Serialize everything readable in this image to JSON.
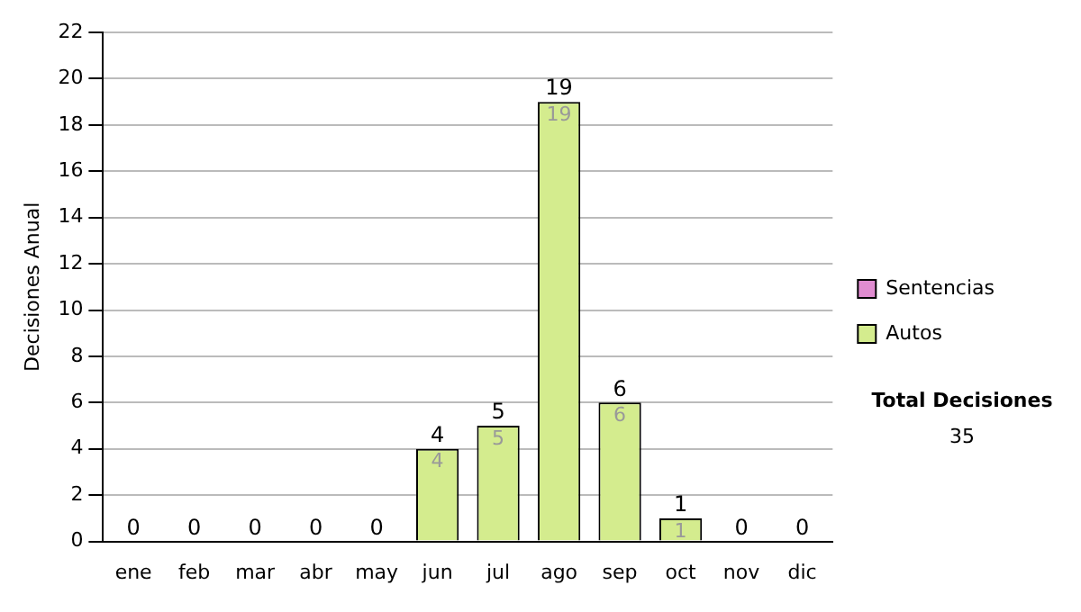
{
  "chart_data": {
    "type": "bar",
    "ylabel": "Decisiones Anual",
    "categories": [
      "ene",
      "feb",
      "mar",
      "abr",
      "may",
      "jun",
      "jul",
      "ago",
      "sep",
      "oct",
      "nov",
      "dic"
    ],
    "stacked": true,
    "series": [
      {
        "name": "Sentencias",
        "color": "#e08cd0",
        "values": [
          0,
          0,
          0,
          0,
          0,
          0,
          0,
          0,
          0,
          0,
          0,
          0
        ]
      },
      {
        "name": "Autos",
        "color": "#d4ec8e",
        "values": [
          0,
          0,
          0,
          0,
          0,
          4,
          5,
          19,
          6,
          1,
          0,
          0
        ],
        "value_labels": [
          null,
          null,
          null,
          null,
          null,
          "4",
          "5",
          "19",
          "6",
          "1",
          null,
          null
        ]
      }
    ],
    "totals": [
      "0",
      "0",
      "0",
      "0",
      "0",
      "4",
      "5",
      "19",
      "6",
      "1",
      "0",
      "0"
    ],
    "ylim": [
      0,
      22
    ],
    "yticks": [
      0,
      2,
      4,
      6,
      8,
      10,
      12,
      14,
      16,
      18,
      20,
      22
    ],
    "grid": "y",
    "legend": "right",
    "annotations": [
      "Total Decisiones",
      "35"
    ]
  }
}
